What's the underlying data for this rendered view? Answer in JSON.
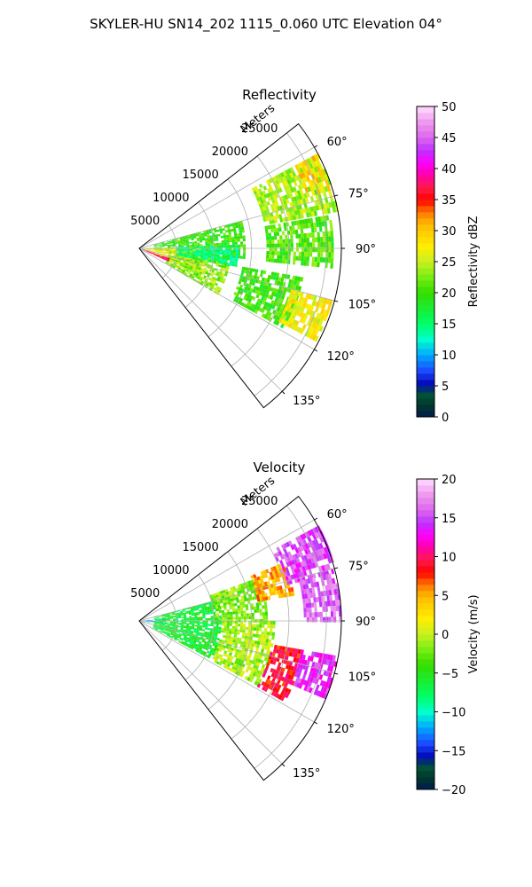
{
  "title": "SKYLER-HU  SN14_202  1115_0.060 UTC Elevation 04°",
  "chart_data": [
    {
      "type": "heatmap",
      "subtype": "polar-sector-radar",
      "title": "Reflectivity",
      "range_label": "Meters",
      "range_ticks": [
        5000,
        10000,
        15000,
        20000,
        25000
      ],
      "range_max": 27000,
      "azimuth_range_deg": [
        52,
        142
      ],
      "azimuth_ticks": [
        "60°",
        "75°",
        "90°",
        "105°",
        "120°",
        "135°"
      ],
      "grid": true,
      "colorbar": {
        "label": "Reflectivity dBZ",
        "min": 0,
        "max": 50,
        "ticks": [
          "0",
          "5",
          "10",
          "15",
          "20",
          "25",
          "30",
          "35",
          "40",
          "45",
          "50"
        ]
      },
      "regions": [
        {
          "az": [
            62,
            78
          ],
          "r": [
            17000,
            27000
          ],
          "value": 24
        },
        {
          "az": [
            62,
            72
          ],
          "r": [
            23500,
            26500
          ],
          "value": 29
        },
        {
          "az": [
            75,
            95
          ],
          "r": [
            2000,
            14000
          ],
          "value": 20
        },
        {
          "az": [
            90,
            112
          ],
          "r": [
            0,
            9000
          ],
          "value": 27
        },
        {
          "az": [
            95,
            120
          ],
          "r": [
            4000,
            12000
          ],
          "value": 23
        },
        {
          "az": [
            88,
            100
          ],
          "r": [
            5000,
            13000
          ],
          "value": 15
        },
        {
          "az": [
            100,
            118
          ],
          "r": [
            14000,
            22000
          ],
          "value": 20
        },
        {
          "az": [
            105,
            117
          ],
          "r": [
            21000,
            26500
          ],
          "value": 27
        },
        {
          "az": [
            80,
            95
          ],
          "r": [
            17000,
            26000
          ],
          "value": 21
        },
        {
          "az": [
            108,
            114
          ],
          "r": [
            0,
            4000
          ],
          "value": 37
        }
      ]
    },
    {
      "type": "heatmap",
      "subtype": "polar-sector-radar",
      "title": "Velocity",
      "range_label": "Meters",
      "range_ticks": [
        5000,
        10000,
        15000,
        20000,
        25000
      ],
      "range_max": 27000,
      "azimuth_range_deg": [
        52,
        142
      ],
      "azimuth_ticks": [
        "60°",
        "75°",
        "90°",
        "105°",
        "120°",
        "135°"
      ],
      "grid": true,
      "colorbar": {
        "label": "Velocity (m/s)",
        "min": -20,
        "max": 20,
        "ticks": [
          "−20",
          "−15",
          "−10",
          "−5",
          "0",
          "5",
          "10",
          "15",
          "20"
        ]
      },
      "regions": [
        {
          "az": [
            84,
            96
          ],
          "r": [
            0,
            3500
          ],
          "value": -11
        },
        {
          "az": [
            75,
            118
          ],
          "r": [
            2000,
            11000
          ],
          "value": -6
        },
        {
          "az": [
            70,
            90
          ],
          "r": [
            10000,
            17000
          ],
          "value": -2
        },
        {
          "az": [
            90,
            118
          ],
          "r": [
            11000,
            18000
          ],
          "value": -1
        },
        {
          "az": [
            68,
            80
          ],
          "r": [
            16000,
            21000
          ],
          "value": 5
        },
        {
          "az": [
            100,
            118
          ],
          "r": [
            18000,
            22000
          ],
          "value": 9
        },
        {
          "az": [
            62,
            76
          ],
          "r": [
            20000,
            27000
          ],
          "value": 15
        },
        {
          "az": [
            76,
            90
          ],
          "r": [
            22000,
            27000
          ],
          "value": 16
        },
        {
          "az": [
            100,
            112
          ],
          "r": [
            22000,
            27000
          ],
          "value": 14
        }
      ]
    }
  ]
}
